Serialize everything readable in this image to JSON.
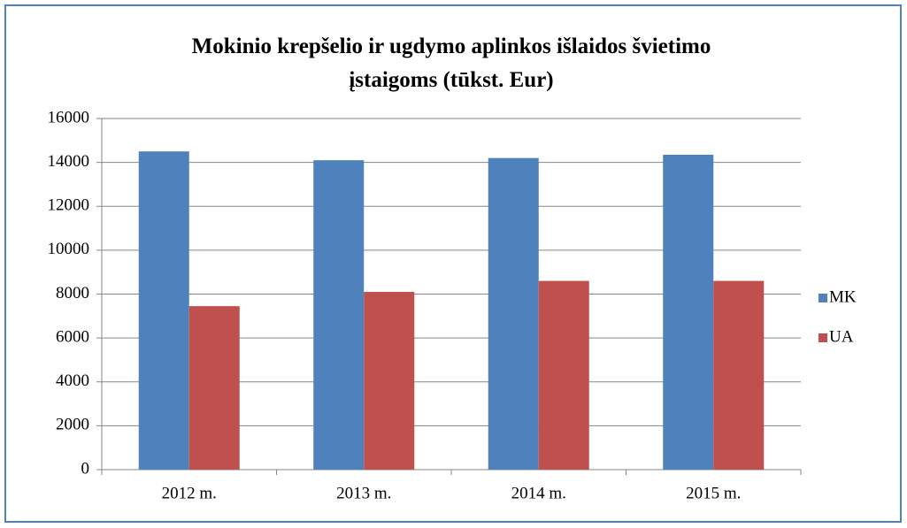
{
  "chart_data": {
    "type": "bar",
    "title": "Mokinio krepšelio ir ugdymo aplinkos išlaidos švietimo įstaigoms (tūkst. Eur)",
    "categories": [
      "2012 m.",
      "2013 m.",
      "2014 m.",
      "2015 m."
    ],
    "series": [
      {
        "name": "MK",
        "color": "#4f81bd",
        "values": [
          14500,
          14100,
          14200,
          14350
        ]
      },
      {
        "name": "UA",
        "color": "#c0504d",
        "values": [
          7450,
          8100,
          8600,
          8600
        ]
      }
    ],
    "ylim": [
      0,
      16000
    ],
    "yticks": [
      0,
      2000,
      4000,
      6000,
      8000,
      10000,
      12000,
      14000,
      16000
    ],
    "grid": true,
    "legend": "right"
  }
}
